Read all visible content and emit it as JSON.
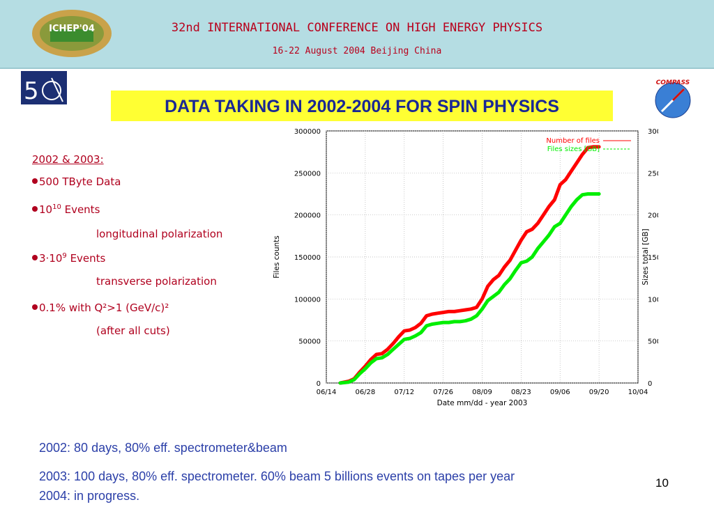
{
  "header": {
    "conference_title": "32nd INTERNATIONAL CONFERENCE ON HIGH ENERGY PHYSICS",
    "conference_dates": "16-22 August 2004 Beijing China",
    "ichep_logo_text": "ICHEP'04",
    "compass_logo_text": "COMPASS",
    "colors": {
      "header_bg": "#b5dde3",
      "title_red": "#b8001c"
    }
  },
  "slide": {
    "title": "DATA TAKING IN 2002-2004 FOR SPIN PHYSICS",
    "page_number": "10"
  },
  "notes": {
    "heading": "2002 & 2003:",
    "item1": "500 TByte Data",
    "item2_base": "10",
    "item2_exp": "10",
    "item2_rest": " Events",
    "item2_sub": "longitudinal polarization",
    "item3_base": "3",
    "item3_dot": "·",
    "item3_ten": "10",
    "item3_exp": "9",
    "item3_rest": " Events",
    "item3_sub": "transverse polarization",
    "item4": "0.1% with Q²>1 (GeV/c)²",
    "item4_sub": "(after all cuts)"
  },
  "footer": {
    "line1": "2002: 80 days, 80% eff. spectrometer&beam",
    "line2": "2003: 100 days, 80% eff. spectrometer. 60% beam 5 billions events on tapes per year",
    "line3": "2004:  in progress."
  },
  "chart_data": {
    "type": "line",
    "xlabel": "Date mm/dd - year 2003",
    "ylabel": "Files counts",
    "y2label": "Sizes total [GB]",
    "xlim": [
      0,
      112
    ],
    "ylim": [
      0,
      300000
    ],
    "y2lim": [
      0,
      300000
    ],
    "xticks": [
      {
        "value": 0,
        "label": "06/14"
      },
      {
        "value": 14,
        "label": "06/28"
      },
      {
        "value": 28,
        "label": "07/12"
      },
      {
        "value": 42,
        "label": "07/26"
      },
      {
        "value": 56,
        "label": "08/09"
      },
      {
        "value": 70,
        "label": "08/23"
      },
      {
        "value": 84,
        "label": "09/06"
      },
      {
        "value": 98,
        "label": "09/20"
      },
      {
        "value": 112,
        "label": "10/04"
      }
    ],
    "yticks": [
      0,
      50000,
      100000,
      150000,
      200000,
      250000,
      300000
    ],
    "grid": true,
    "legend": "top-right",
    "series": [
      {
        "name": "Number of files",
        "color": "#ff0000",
        "points": [
          [
            5,
            0
          ],
          [
            8,
            2000
          ],
          [
            10,
            5000
          ],
          [
            12,
            13000
          ],
          [
            14,
            20000
          ],
          [
            16,
            28000
          ],
          [
            18,
            34000
          ],
          [
            20,
            35000
          ],
          [
            22,
            40000
          ],
          [
            24,
            47000
          ],
          [
            26,
            55000
          ],
          [
            28,
            62000
          ],
          [
            30,
            63000
          ],
          [
            32,
            66000
          ],
          [
            34,
            71000
          ],
          [
            36,
            80000
          ],
          [
            38,
            82000
          ],
          [
            40,
            83000
          ],
          [
            42,
            84000
          ],
          [
            44,
            85000
          ],
          [
            46,
            85000
          ],
          [
            48,
            86000
          ],
          [
            50,
            87000
          ],
          [
            52,
            88000
          ],
          [
            54,
            90000
          ],
          [
            56,
            100000
          ],
          [
            58,
            115000
          ],
          [
            60,
            123000
          ],
          [
            62,
            128000
          ],
          [
            64,
            138000
          ],
          [
            66,
            146000
          ],
          [
            68,
            158000
          ],
          [
            70,
            170000
          ],
          [
            72,
            180000
          ],
          [
            74,
            183000
          ],
          [
            76,
            190000
          ],
          [
            78,
            200000
          ],
          [
            80,
            210000
          ],
          [
            82,
            218000
          ],
          [
            84,
            236000
          ],
          [
            86,
            242000
          ],
          [
            88,
            252000
          ],
          [
            90,
            262000
          ],
          [
            92,
            272000
          ],
          [
            94,
            280000
          ],
          [
            96,
            281000
          ],
          [
            98,
            281000
          ]
        ]
      },
      {
        "name": "Files sizes [GB]",
        "color": "#00ee00",
        "points": [
          [
            5,
            0
          ],
          [
            8,
            1000
          ],
          [
            10,
            4000
          ],
          [
            12,
            11000
          ],
          [
            14,
            17000
          ],
          [
            16,
            24000
          ],
          [
            18,
            29000
          ],
          [
            20,
            30000
          ],
          [
            22,
            34000
          ],
          [
            24,
            40000
          ],
          [
            26,
            46000
          ],
          [
            28,
            52000
          ],
          [
            30,
            53000
          ],
          [
            32,
            56000
          ],
          [
            34,
            60000
          ],
          [
            36,
            68000
          ],
          [
            38,
            70000
          ],
          [
            40,
            71000
          ],
          [
            42,
            72000
          ],
          [
            44,
            72000
          ],
          [
            46,
            73000
          ],
          [
            48,
            73000
          ],
          [
            50,
            74000
          ],
          [
            52,
            76000
          ],
          [
            54,
            80000
          ],
          [
            56,
            88000
          ],
          [
            58,
            98000
          ],
          [
            60,
            103000
          ],
          [
            62,
            108000
          ],
          [
            64,
            117000
          ],
          [
            66,
            124000
          ],
          [
            68,
            134000
          ],
          [
            70,
            143000
          ],
          [
            72,
            145000
          ],
          [
            74,
            150000
          ],
          [
            76,
            160000
          ],
          [
            78,
            168000
          ],
          [
            80,
            176000
          ],
          [
            82,
            186000
          ],
          [
            84,
            190000
          ],
          [
            86,
            200000
          ],
          [
            88,
            210000
          ],
          [
            90,
            218000
          ],
          [
            92,
            224000
          ],
          [
            94,
            225000
          ],
          [
            96,
            225000
          ],
          [
            98,
            225000
          ]
        ]
      }
    ]
  }
}
